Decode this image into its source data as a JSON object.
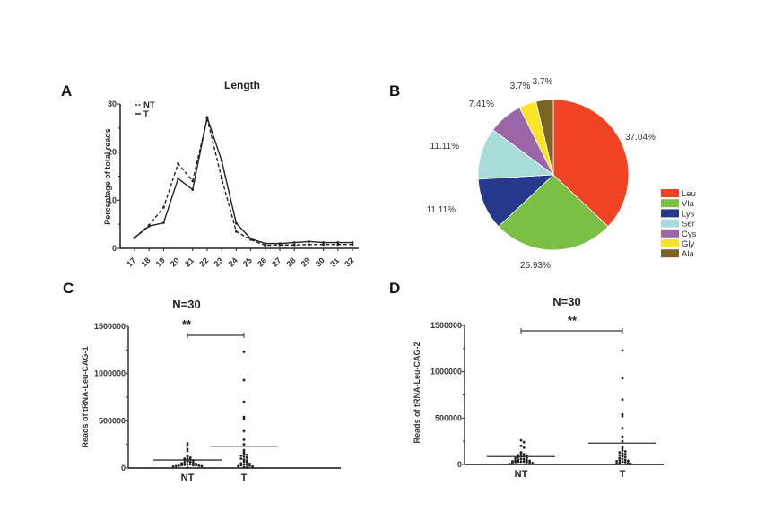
{
  "chart_data": [
    {
      "panel": "A",
      "type": "line",
      "title": "Length",
      "xlabel": "",
      "ylabel": "Percentage of total reads",
      "x": [
        17,
        18,
        19,
        20,
        21,
        22,
        23,
        24,
        25,
        26,
        27,
        28,
        29,
        30,
        31,
        32
      ],
      "xtick_labels": [
        "17",
        "18",
        "19",
        "20",
        "21",
        "22",
        "23",
        "24",
        "25",
        "26",
        "27",
        "28",
        "29",
        "30",
        "31",
        "32"
      ],
      "ylim": [
        0,
        30
      ],
      "yticks": [
        0,
        10,
        20,
        30
      ],
      "ytick_labels": [
        "0",
        "10",
        "20",
        "30"
      ],
      "legend_position": "top-left",
      "series": [
        {
          "name": "NT",
          "style": "dashed",
          "values": [
            2.2,
            4.8,
            8.5,
            17.6,
            14.0,
            27.0,
            14.5,
            3.5,
            1.8,
            0.6,
            0.7,
            0.7,
            0.8,
            0.8,
            0.8,
            0.8
          ]
        },
        {
          "name": "T",
          "style": "solid",
          "values": [
            2.2,
            4.6,
            5.3,
            14.5,
            12.2,
            27.2,
            18.2,
            5.2,
            2.0,
            1.0,
            1.0,
            1.2,
            1.4,
            1.2,
            1.2,
            1.2
          ]
        }
      ]
    },
    {
      "panel": "B",
      "type": "pie",
      "title": "",
      "legend_position": "right",
      "slices": [
        {
          "label": "Leu",
          "value": 37.04,
          "text": "37.04%",
          "color": "#f04323"
        },
        {
          "label": "Vla",
          "value": 25.93,
          "text": "25.93%",
          "color": "#7cbf45"
        },
        {
          "label": "Lys",
          "value": 11.11,
          "text": "11.11%",
          "color": "#253a8c"
        },
        {
          "label": "Ser",
          "value": 11.11,
          "text": "11.11%",
          "color": "#a8dcd8"
        },
        {
          "label": "Cys",
          "value": 7.41,
          "text": "7.41%",
          "color": "#9b65a8"
        },
        {
          "label": "Gly",
          "value": 3.7,
          "text": "3.7%",
          "color": "#fbe32a"
        },
        {
          "label": "Ala",
          "value": 3.7,
          "text": "3.7%",
          "color": "#7a6624"
        }
      ]
    },
    {
      "panel": "C",
      "type": "scatter",
      "title": "N=30",
      "ylabel": "Reads of tRNA-Leu-CAG-1",
      "categories": [
        "NT",
        "T"
      ],
      "ylim": [
        0,
        1500000
      ],
      "yticks": [
        0,
        500000,
        1000000,
        1500000
      ],
      "ytick_labels": [
        "0",
        "500000",
        "1000000",
        "1500000"
      ],
      "significance": "**",
      "series": [
        {
          "name": "NT",
          "mean": 85000,
          "values": [
            260000,
            240000,
            200000,
            180000,
            130000,
            120000,
            110000,
            100000,
            95000,
            90000,
            85000,
            80000,
            70000,
            65000,
            60000,
            55000,
            50000,
            45000,
            40000,
            40000,
            35000,
            30000,
            30000,
            30000,
            25000,
            25000,
            20000,
            20000,
            15000,
            5000
          ]
        },
        {
          "name": "T",
          "mean": 230000,
          "values": [
            1230000,
            930000,
            700000,
            540000,
            520000,
            390000,
            300000,
            250000,
            190000,
            170000,
            150000,
            140000,
            130000,
            120000,
            110000,
            100000,
            90000,
            80000,
            70000,
            60000,
            50000,
            45000,
            40000,
            35000,
            30000,
            25000,
            20000,
            15000,
            10000,
            5000
          ]
        }
      ]
    },
    {
      "panel": "D",
      "type": "scatter",
      "title": "N=30",
      "ylabel": "Reads of tRNA-Leu-CAG-2",
      "categories": [
        "NT",
        "T"
      ],
      "ylim": [
        0,
        1500000
      ],
      "yticks": [
        0,
        500000,
        1000000,
        1500000
      ],
      "ytick_labels": [
        "0",
        "500000",
        "1000000",
        "1500000"
      ],
      "significance": "**",
      "series": [
        {
          "name": "NT",
          "mean": 85000,
          "values": [
            260000,
            240000,
            200000,
            180000,
            130000,
            120000,
            110000,
            100000,
            95000,
            90000,
            85000,
            80000,
            70000,
            65000,
            60000,
            55000,
            50000,
            45000,
            40000,
            40000,
            35000,
            30000,
            30000,
            30000,
            25000,
            25000,
            20000,
            20000,
            15000,
            5000
          ]
        },
        {
          "name": "T",
          "mean": 230000,
          "values": [
            1230000,
            930000,
            700000,
            540000,
            520000,
            390000,
            300000,
            250000,
            190000,
            170000,
            150000,
            140000,
            130000,
            120000,
            110000,
            100000,
            90000,
            80000,
            70000,
            60000,
            50000,
            45000,
            40000,
            35000,
            30000,
            25000,
            20000,
            15000,
            10000,
            5000
          ]
        }
      ]
    }
  ],
  "panels": {
    "A": {
      "letter": "A"
    },
    "B": {
      "letter": "B"
    },
    "C": {
      "letter": "C"
    },
    "D": {
      "letter": "D"
    }
  }
}
